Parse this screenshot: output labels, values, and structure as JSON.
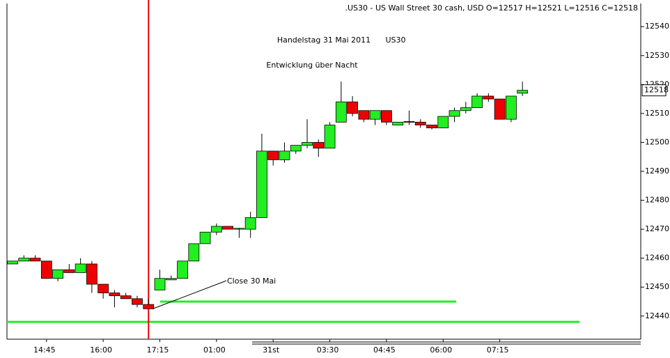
{
  "chart_data": {
    "type": "candlestick",
    "header": ".US30 - US Wall Street 30 cash, USD O=12517 H=12521 L=12516 C=12518",
    "annotations": [
      "Handelstag 31 Mai 2011",
      "US30",
      "Entwicklung über Nacht",
      "Close 30 Mai"
    ],
    "categories": [
      null,
      null,
      null,
      "14:45",
      null,
      null,
      null,
      null,
      "16:00",
      null,
      null,
      null,
      null,
      "17:15",
      null,
      null,
      null,
      null,
      "01:00",
      null,
      null,
      null,
      null,
      "31st",
      null,
      null,
      null,
      null,
      "03:30",
      null,
      null,
      null,
      null,
      "04:45",
      null,
      null,
      null,
      null,
      "06:00",
      null,
      null,
      null,
      null,
      "07:15",
      null,
      null
    ],
    "open": [
      12458,
      12459,
      12460,
      12459,
      12453,
      12456,
      12455,
      12458,
      12451,
      12448,
      12447,
      12446,
      12444,
      12449,
      12452.5,
      12453,
      12459,
      12465,
      12469,
      12471,
      12470,
      12470,
      12474,
      12497,
      12494,
      12497,
      12499,
      12500,
      12498,
      12507,
      12514,
      12511,
      12508,
      12511,
      12506,
      12507.2,
      12507,
      12506,
      12505,
      12509,
      12511,
      12512,
      12516,
      12515,
      12508,
      12517
    ],
    "high": [
      12459,
      12461,
      12461,
      12459,
      12456,
      12458,
      12460,
      12459,
      12451,
      12449,
      12448,
      12447,
      12446,
      12456,
      12454,
      12459,
      12465,
      12469,
      12472,
      12471,
      12470.5,
      12476,
      12503,
      12497,
      12500,
      12499,
      12508,
      12501,
      12507,
      12521,
      12516,
      12511,
      12511,
      12511,
      12507,
      12511,
      12508,
      12506,
      12509,
      12512,
      12514,
      12517,
      12517,
      12515,
      12516,
      12521
    ],
    "low": [
      12458,
      12459,
      12459,
      12453,
      12452,
      12455,
      12455,
      12448,
      12446,
      12443,
      12446,
      12443,
      12442.5,
      12449,
      12452.5,
      12453,
      12459,
      12465,
      12468,
      12470,
      12467,
      12467,
      12474,
      12492,
      12493,
      12496,
      12498,
      12495,
      12498,
      12507,
      12509,
      12507,
      12506,
      12506,
      12506,
      12506,
      12505,
      12504.5,
      12505,
      12507,
      12510,
      12512,
      12514,
      12508,
      12507,
      12516
    ],
    "close": [
      12459,
      12460,
      12459,
      12453,
      12456,
      12455,
      12458,
      12451,
      12448,
      12447,
      12446,
      12444,
      12442.5,
      12453,
      12453,
      12459,
      12465,
      12469,
      12471,
      12470,
      12470.3,
      12474,
      12497,
      12494,
      12497,
      12499,
      12500,
      12498,
      12506,
      12514,
      12510,
      12508,
      12511,
      12507,
      12507,
      12507,
      12506,
      12505,
      12509,
      12511,
      12512,
      12516,
      12515,
      12508,
      12516,
      12518
    ],
    "up_color": "#22ee22",
    "down_color": "#ee0000",
    "levels": [
      {
        "value": 12445,
        "color": "#22ee22"
      },
      {
        "value": 12438,
        "color": "#22ee22"
      }
    ],
    "vline": {
      "category": 12,
      "color": "#ee0000"
    },
    "ylim": [
      12432,
      12548
    ],
    "yticks": [
      12440,
      12450,
      12460,
      12470,
      12480,
      12490,
      12500,
      12510,
      12520,
      12530,
      12540
    ]
  }
}
